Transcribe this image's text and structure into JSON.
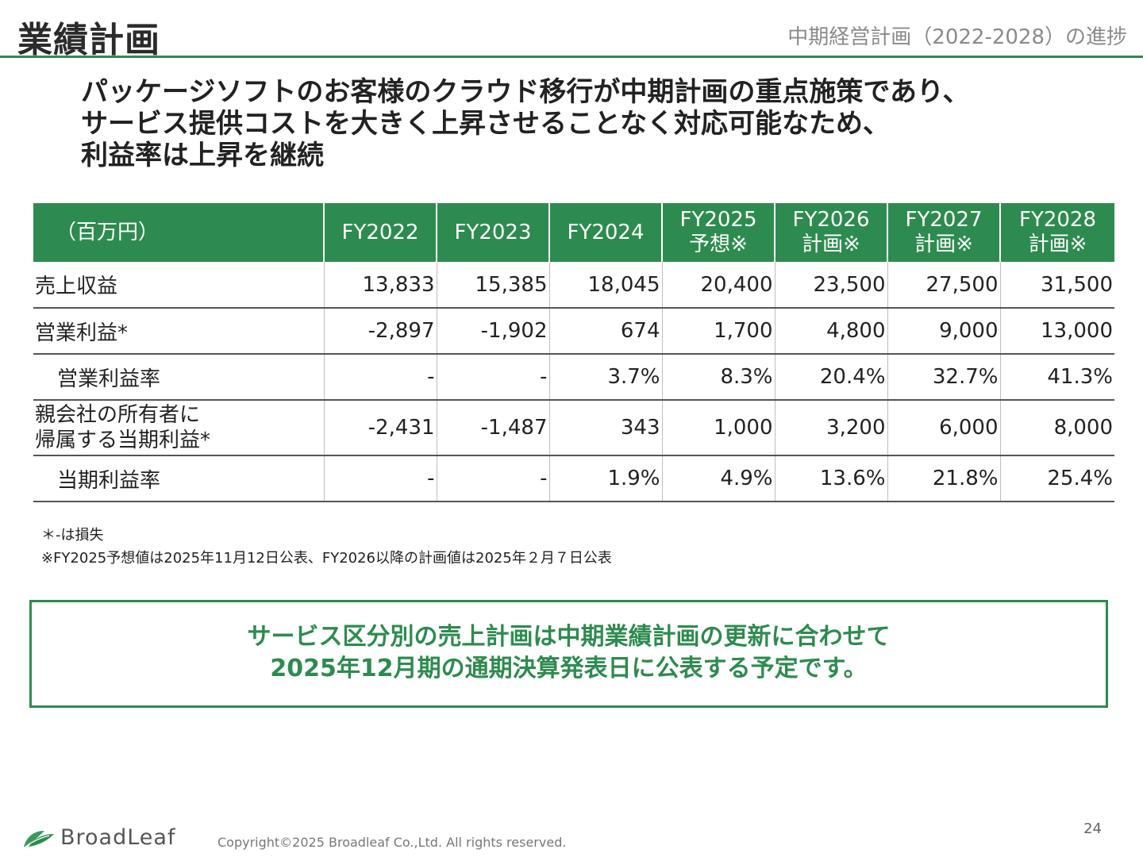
{
  "header": {
    "title": "業績計画",
    "subtitle": "中期経営計画（2022-2028）の進捗"
  },
  "headline": [
    "パッケージソフトのお客様のクラウド移行が中期計画の重点施策であり、",
    "サービス提供コストを大きく上昇させることなく対応可能なため、",
    "利益率は上昇を継続"
  ],
  "table": {
    "unit_label": "（百万円）",
    "columns": [
      {
        "line1": "FY2022",
        "line2": ""
      },
      {
        "line1": "FY2023",
        "line2": ""
      },
      {
        "line1": "FY2024",
        "line2": ""
      },
      {
        "line1": "FY2025",
        "line2": "予想※"
      },
      {
        "line1": "FY2026",
        "line2": "計画※"
      },
      {
        "line1": "FY2027",
        "line2": "計画※"
      },
      {
        "line1": "FY2028",
        "line2": "計画※"
      }
    ],
    "rows": [
      {
        "label": "売上収益",
        "label2": "",
        "values": [
          "13,833",
          "15,385",
          "18,045",
          "20,400",
          "23,500",
          "27,500",
          "31,500"
        ]
      },
      {
        "label": "営業利益*",
        "label2": "",
        "values": [
          "-2,897",
          "-1,902",
          "674",
          "1,700",
          "4,800",
          "9,000",
          "13,000"
        ]
      },
      {
        "label": "営業利益率",
        "label2": "",
        "values": [
          "-",
          "-",
          "3.7%",
          "8.3%",
          "20.4%",
          "32.7%",
          "41.3%"
        ]
      },
      {
        "label": "親会社の所有者に",
        "label2": "帰属する当期利益*",
        "values": [
          "-2,431",
          "-1,487",
          "343",
          "1,000",
          "3,200",
          "6,000",
          "8,000"
        ]
      },
      {
        "label": "当期利益率",
        "label2": "",
        "values": [
          "-",
          "-",
          "1.9%",
          "4.9%",
          "13.6%",
          "21.8%",
          "25.4%"
        ]
      }
    ]
  },
  "notes": [
    "＊-は損失",
    "※FY2025予想値は2025年11月12日公表、FY2026以降の計画値は2025年２月７日公表"
  ],
  "callout": [
    "サービス区分別の売上計画は中期業績計画の更新に合わせて",
    "2025年12月期の通期決算発表日に公表する予定です。"
  ],
  "footer": {
    "logo_text": "BroadLeaf",
    "copyright": "Copyright©2025 Broadleaf Co.,Ltd. All rights reserved.",
    "page_number": "24"
  },
  "colors": {
    "brand_green": "#2e8b4f",
    "header_gray": "#8a8a8a"
  }
}
